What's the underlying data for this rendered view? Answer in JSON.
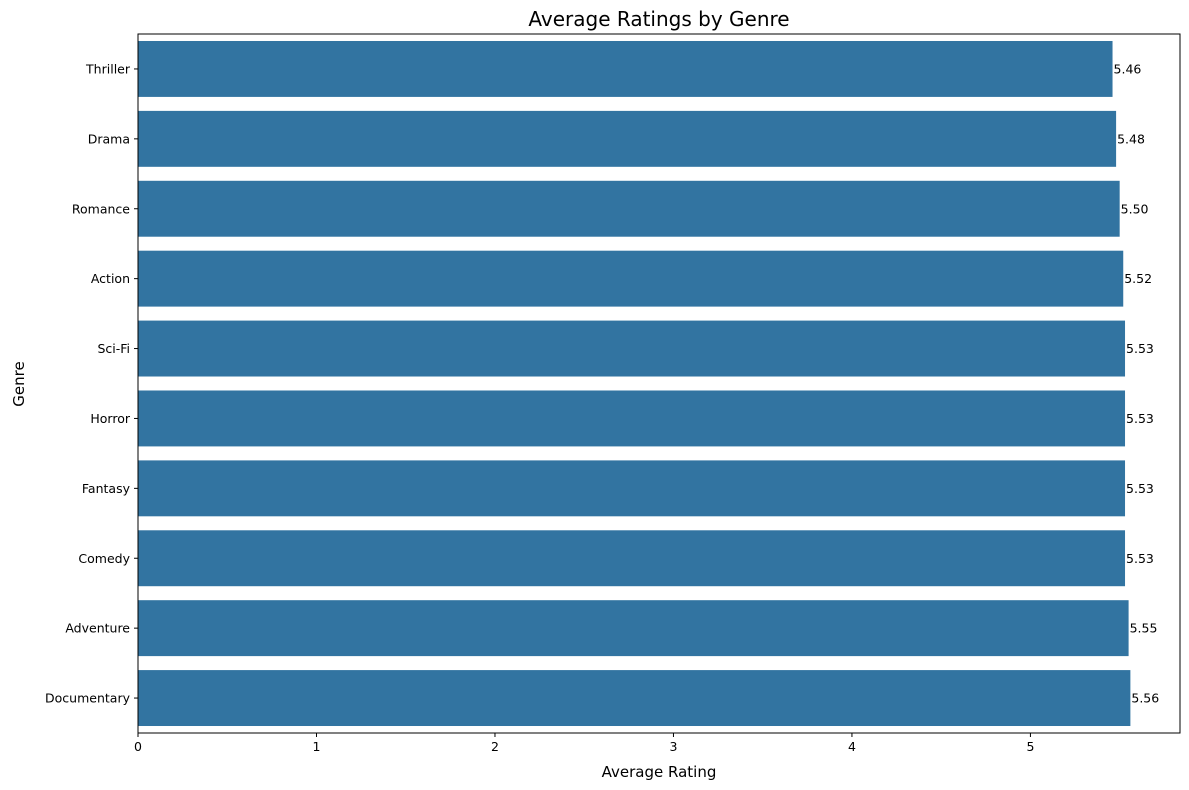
{
  "chart_data": {
    "type": "bar",
    "orientation": "horizontal",
    "title": "Average Ratings by Genre",
    "xlabel": "Average Rating",
    "ylabel": "Genre",
    "categories": [
      "Thriller",
      "Drama",
      "Romance",
      "Action",
      "Sci-Fi",
      "Horror",
      "Fantasy",
      "Comedy",
      "Adventure",
      "Documentary"
    ],
    "values": [
      5.46,
      5.48,
      5.5,
      5.52,
      5.53,
      5.53,
      5.53,
      5.53,
      5.55,
      5.56
    ],
    "data_labels": [
      "5.46",
      "5.48",
      "5.50",
      "5.52",
      "5.53",
      "5.53",
      "5.53",
      "5.53",
      "5.55",
      "5.56"
    ],
    "xticks": [
      0,
      1,
      2,
      3,
      4,
      5
    ],
    "xtick_labels": [
      "0",
      "1",
      "2",
      "3",
      "4",
      "5"
    ],
    "xlim": [
      0,
      5.838
    ],
    "grid": false,
    "bar_color": "#3274a1"
  }
}
